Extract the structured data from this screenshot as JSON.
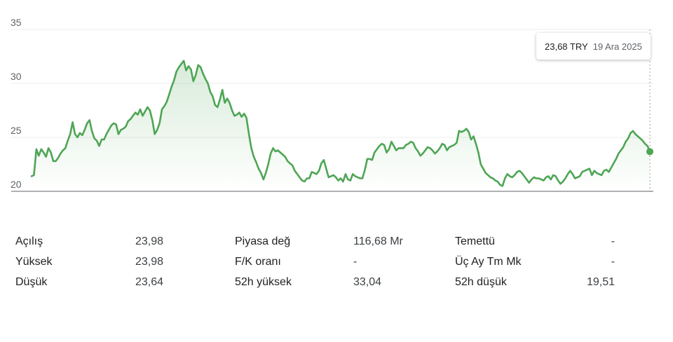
{
  "chart_data": {
    "type": "line",
    "x_count": 250,
    "ylim": [
      20,
      35
    ],
    "yticks": [
      20,
      25,
      30,
      35
    ],
    "ytick_labels": [
      "20",
      "25",
      "30",
      "35"
    ],
    "grid": true,
    "series": [
      {
        "color": "#4ea554",
        "values": [
          21.4,
          21.5,
          23.9,
          23.3,
          23.9,
          23.6,
          23.2,
          24.0,
          23.6,
          22.8,
          22.8,
          23.1,
          23.5,
          23.8,
          24.0,
          24.7,
          25.3,
          26.4,
          25.3,
          25.0,
          25.4,
          25.2,
          25.7,
          26.3,
          26.6,
          25.6,
          24.9,
          24.7,
          24.2,
          24.8,
          24.8,
          25.3,
          25.7,
          26.1,
          26.3,
          26.2,
          25.3,
          25.7,
          25.8,
          26.0,
          26.5,
          26.7,
          27.0,
          27.3,
          27.1,
          27.6,
          27.0,
          27.4,
          27.8,
          27.5,
          26.6,
          25.3,
          25.7,
          26.3,
          27.6,
          27.9,
          28.3,
          29.0,
          29.7,
          30.3,
          31.1,
          31.5,
          31.8,
          32.1,
          31.2,
          31.6,
          31.3,
          30.2,
          30.8,
          31.7,
          31.5,
          30.9,
          30.4,
          30.0,
          29.2,
          28.8,
          28.0,
          27.8,
          28.5,
          29.4,
          28.2,
          28.6,
          28.2,
          27.5,
          27.0,
          27.1,
          27.3,
          26.9,
          27.2,
          26.8,
          25.3,
          24.0,
          23.2,
          22.7,
          22.1,
          21.7,
          21.1,
          21.7,
          22.5,
          23.5,
          24.0,
          23.7,
          23.8,
          23.6,
          23.4,
          23.2,
          22.8,
          22.6,
          22.4,
          21.9,
          21.6,
          21.3,
          21.0,
          20.9,
          21.2,
          21.2,
          21.8,
          21.7,
          21.6,
          21.9,
          22.6,
          22.9,
          22.1,
          21.3,
          21.4,
          21.5,
          21.3,
          21.0,
          21.2,
          20.9,
          21.6,
          21.1,
          21.0,
          21.6,
          21.4,
          21.3,
          21.2,
          21.2,
          22.0,
          23.0,
          23.0,
          22.9,
          23.6,
          23.9,
          24.2,
          24.4,
          24.3,
          23.6,
          23.9,
          24.6,
          24.2,
          23.8,
          24.0,
          24.0,
          24.0,
          24.3,
          24.4,
          24.6,
          24.5,
          24.0,
          23.7,
          23.3,
          23.5,
          23.8,
          24.1,
          24.0,
          23.8,
          23.5,
          23.7,
          24.0,
          24.4,
          24.3,
          23.8,
          24.1,
          24.2,
          24.3,
          24.5,
          25.6,
          25.5,
          25.6,
          25.8,
          25.5,
          24.8,
          25.1,
          24.4,
          23.6,
          22.5,
          22.1,
          21.7,
          21.5,
          21.3,
          21.2,
          21.0,
          20.9,
          20.6,
          20.5,
          21.2,
          21.6,
          21.4,
          21.3,
          21.5,
          21.8,
          21.9,
          21.7,
          21.4,
          21.1,
          20.8,
          21.1,
          21.3,
          21.2,
          21.2,
          21.1,
          21.0,
          21.3,
          21.4,
          21.1,
          21.5,
          21.4,
          21.0,
          20.7,
          20.9,
          21.2,
          21.6,
          21.9,
          21.6,
          21.2,
          21.3,
          21.4,
          21.8,
          21.9,
          22.0,
          22.1,
          21.5,
          21.9,
          21.7,
          21.6,
          21.5,
          21.9,
          22.0,
          21.8,
          22.2,
          22.6,
          23.0,
          23.5,
          23.8,
          24.1,
          24.6,
          24.9,
          25.4,
          25.6,
          25.3,
          25.1,
          24.9,
          24.7,
          24.4,
          24.2,
          23.68
        ]
      }
    ],
    "tooltip": {
      "price": "23,68 TRY",
      "date": "19 Ara 2025"
    }
  },
  "stats": {
    "rows": [
      [
        {
          "label": "Açılış",
          "value": "23,98"
        },
        {
          "label": "Piyasa değ",
          "value": "116,68 Mr"
        },
        {
          "label": "Temettü",
          "value": "-"
        }
      ],
      [
        {
          "label": "Yüksek",
          "value": "23,98"
        },
        {
          "label": "F/K oranı",
          "value": "-"
        },
        {
          "label": "Üç Ay Tm Mk",
          "value": "-"
        }
      ],
      [
        {
          "label": "Düşük",
          "value": "23,64"
        },
        {
          "label": "52h yüksek",
          "value": "33,04"
        },
        {
          "label": "52h düşük",
          "value": "19,51"
        }
      ]
    ]
  }
}
